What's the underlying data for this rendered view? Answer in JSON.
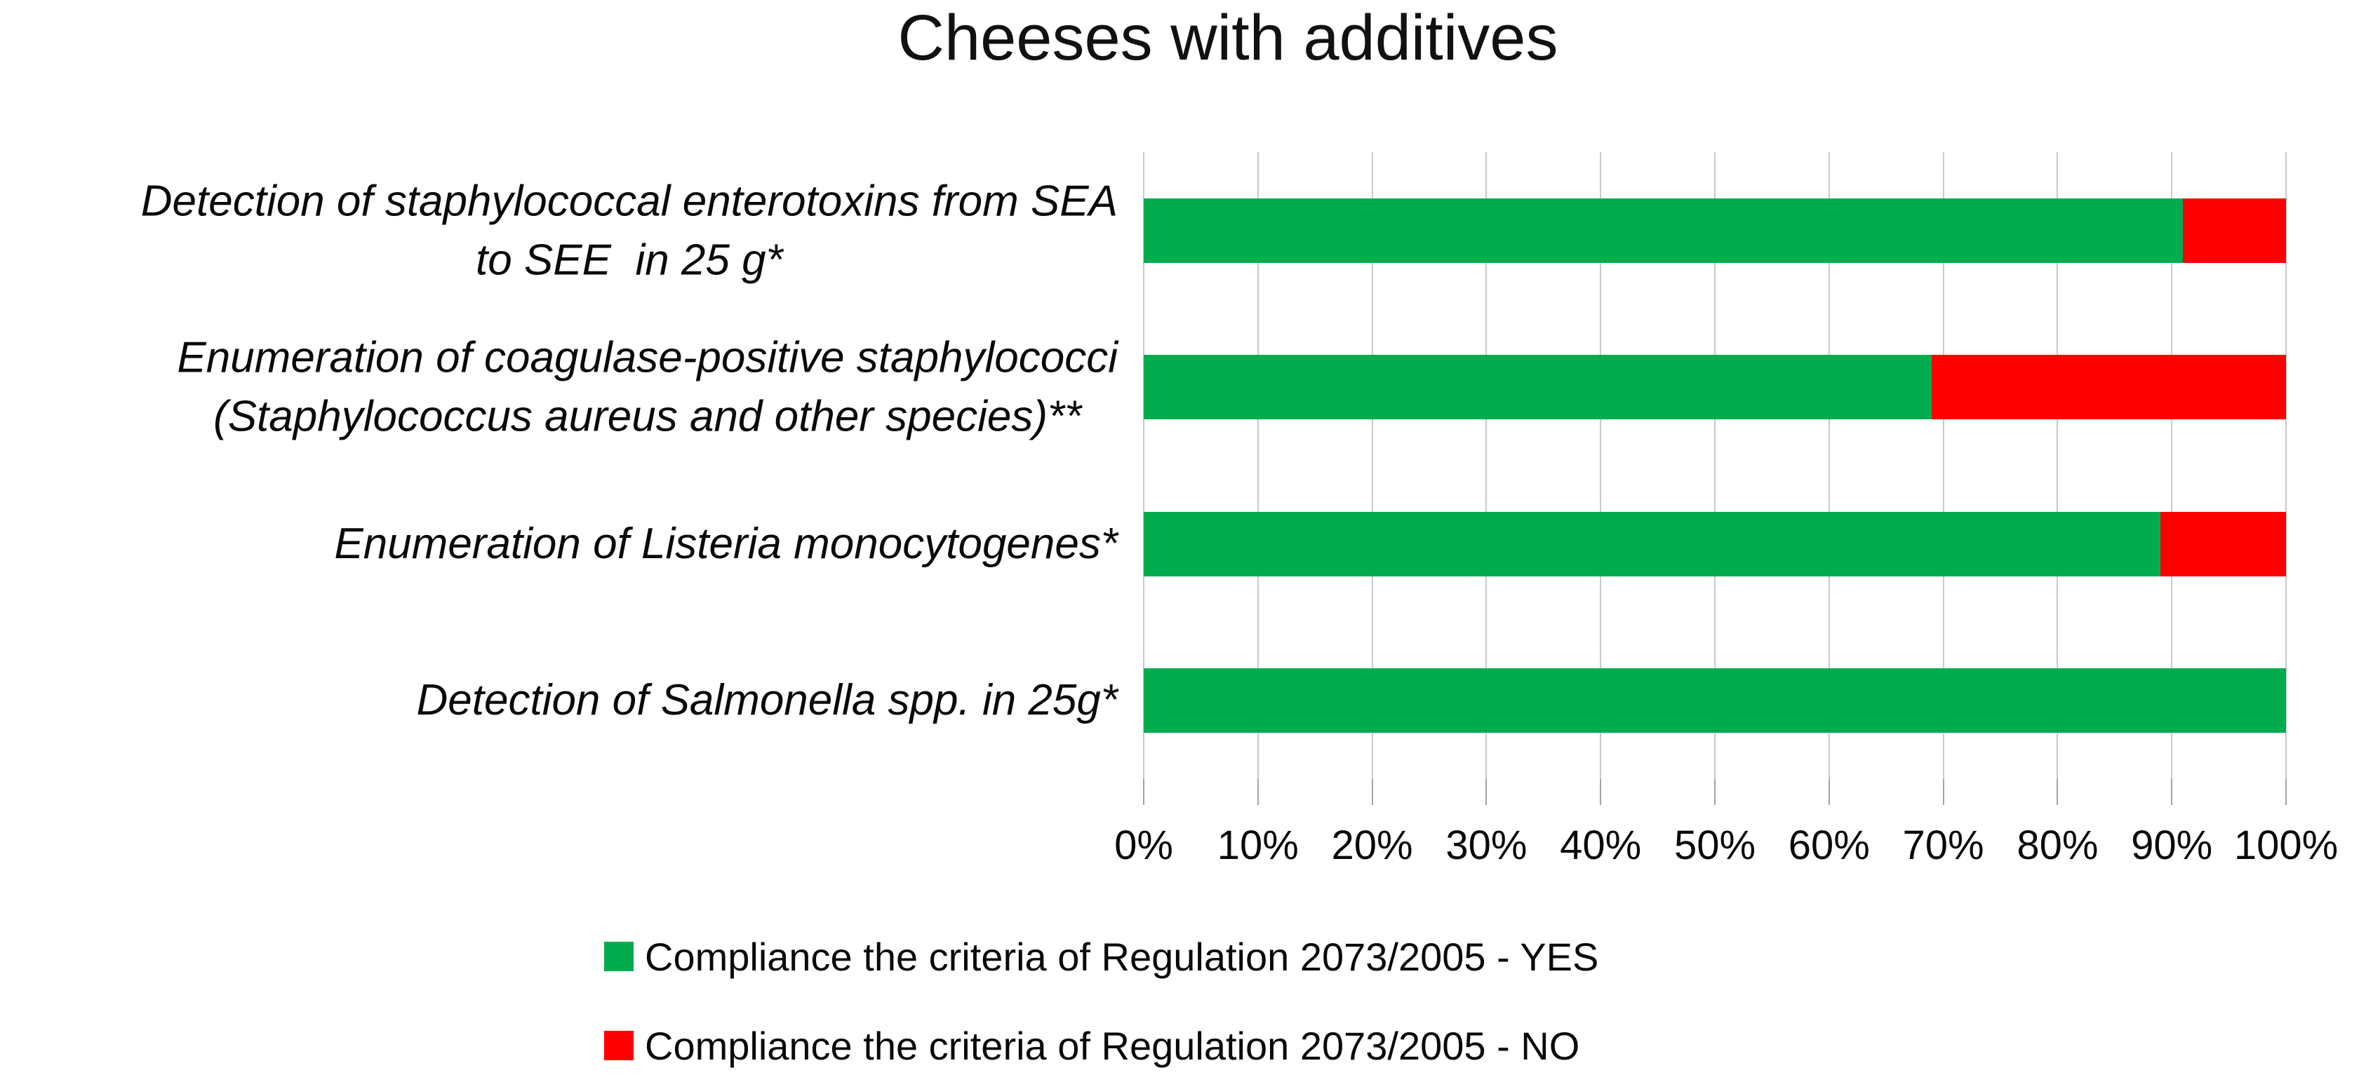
{
  "title": "Cheeses with additives",
  "colors": {
    "yes_green": "#00AC4E",
    "no_red": "#FF0000",
    "gridline": "#C9C9C9",
    "tick": "#A3A3A3"
  },
  "chart_data": {
    "type": "bar",
    "orientation": "horizontal",
    "stacked": true,
    "title": "Cheeses with additives",
    "categories": [
      "Detection of staphylococcal enterotoxins from SEA to SEE  in 25 g*",
      "Enumeration of coagulase-positive staphylococci (Staphylococcus aureus and other species)**",
      "Enumeration of Listeria monocytogenes*",
      "Detection of Salmonella spp. in 25g*"
    ],
    "category_lines": [
      [
        "Detection of staphylococcal enterotoxins from SEA",
        "to SEE  in 25 g*"
      ],
      [
        "Enumeration of coagulase-positive staphylococci",
        "(Staphylococcus aureus and other species)**"
      ],
      [
        "Enumeration of Listeria monocytogenes*"
      ],
      [
        "Detection of Salmonella spp. in 25g*"
      ]
    ],
    "series": [
      {
        "name": "Compliance the criteria of Regulation 2073/2005 - YES",
        "color": "#00AC4E",
        "values": [
          91,
          69,
          89,
          100
        ]
      },
      {
        "name": "Compliance the criteria of Regulation 2073/2005 - NO",
        "color": "#FF0000",
        "values": [
          9,
          31,
          11,
          0
        ]
      }
    ],
    "x_axis": {
      "min": 0,
      "max": 100,
      "tick_step": 10,
      "tick_labels": [
        "0%",
        "10%",
        "20%",
        "30%",
        "40%",
        "50%",
        "60%",
        "70%",
        "80%",
        "90%",
        "100%"
      ],
      "gridlines": true
    },
    "legend_position": "bottom"
  },
  "legend": {
    "items": [
      {
        "label": "Compliance the criteria of Regulation 2073/2005 - YES",
        "color": "#00AC4E"
      },
      {
        "label": "Compliance the criteria of Regulation 2073/2005 - NO",
        "color": "#FF0000"
      }
    ]
  }
}
